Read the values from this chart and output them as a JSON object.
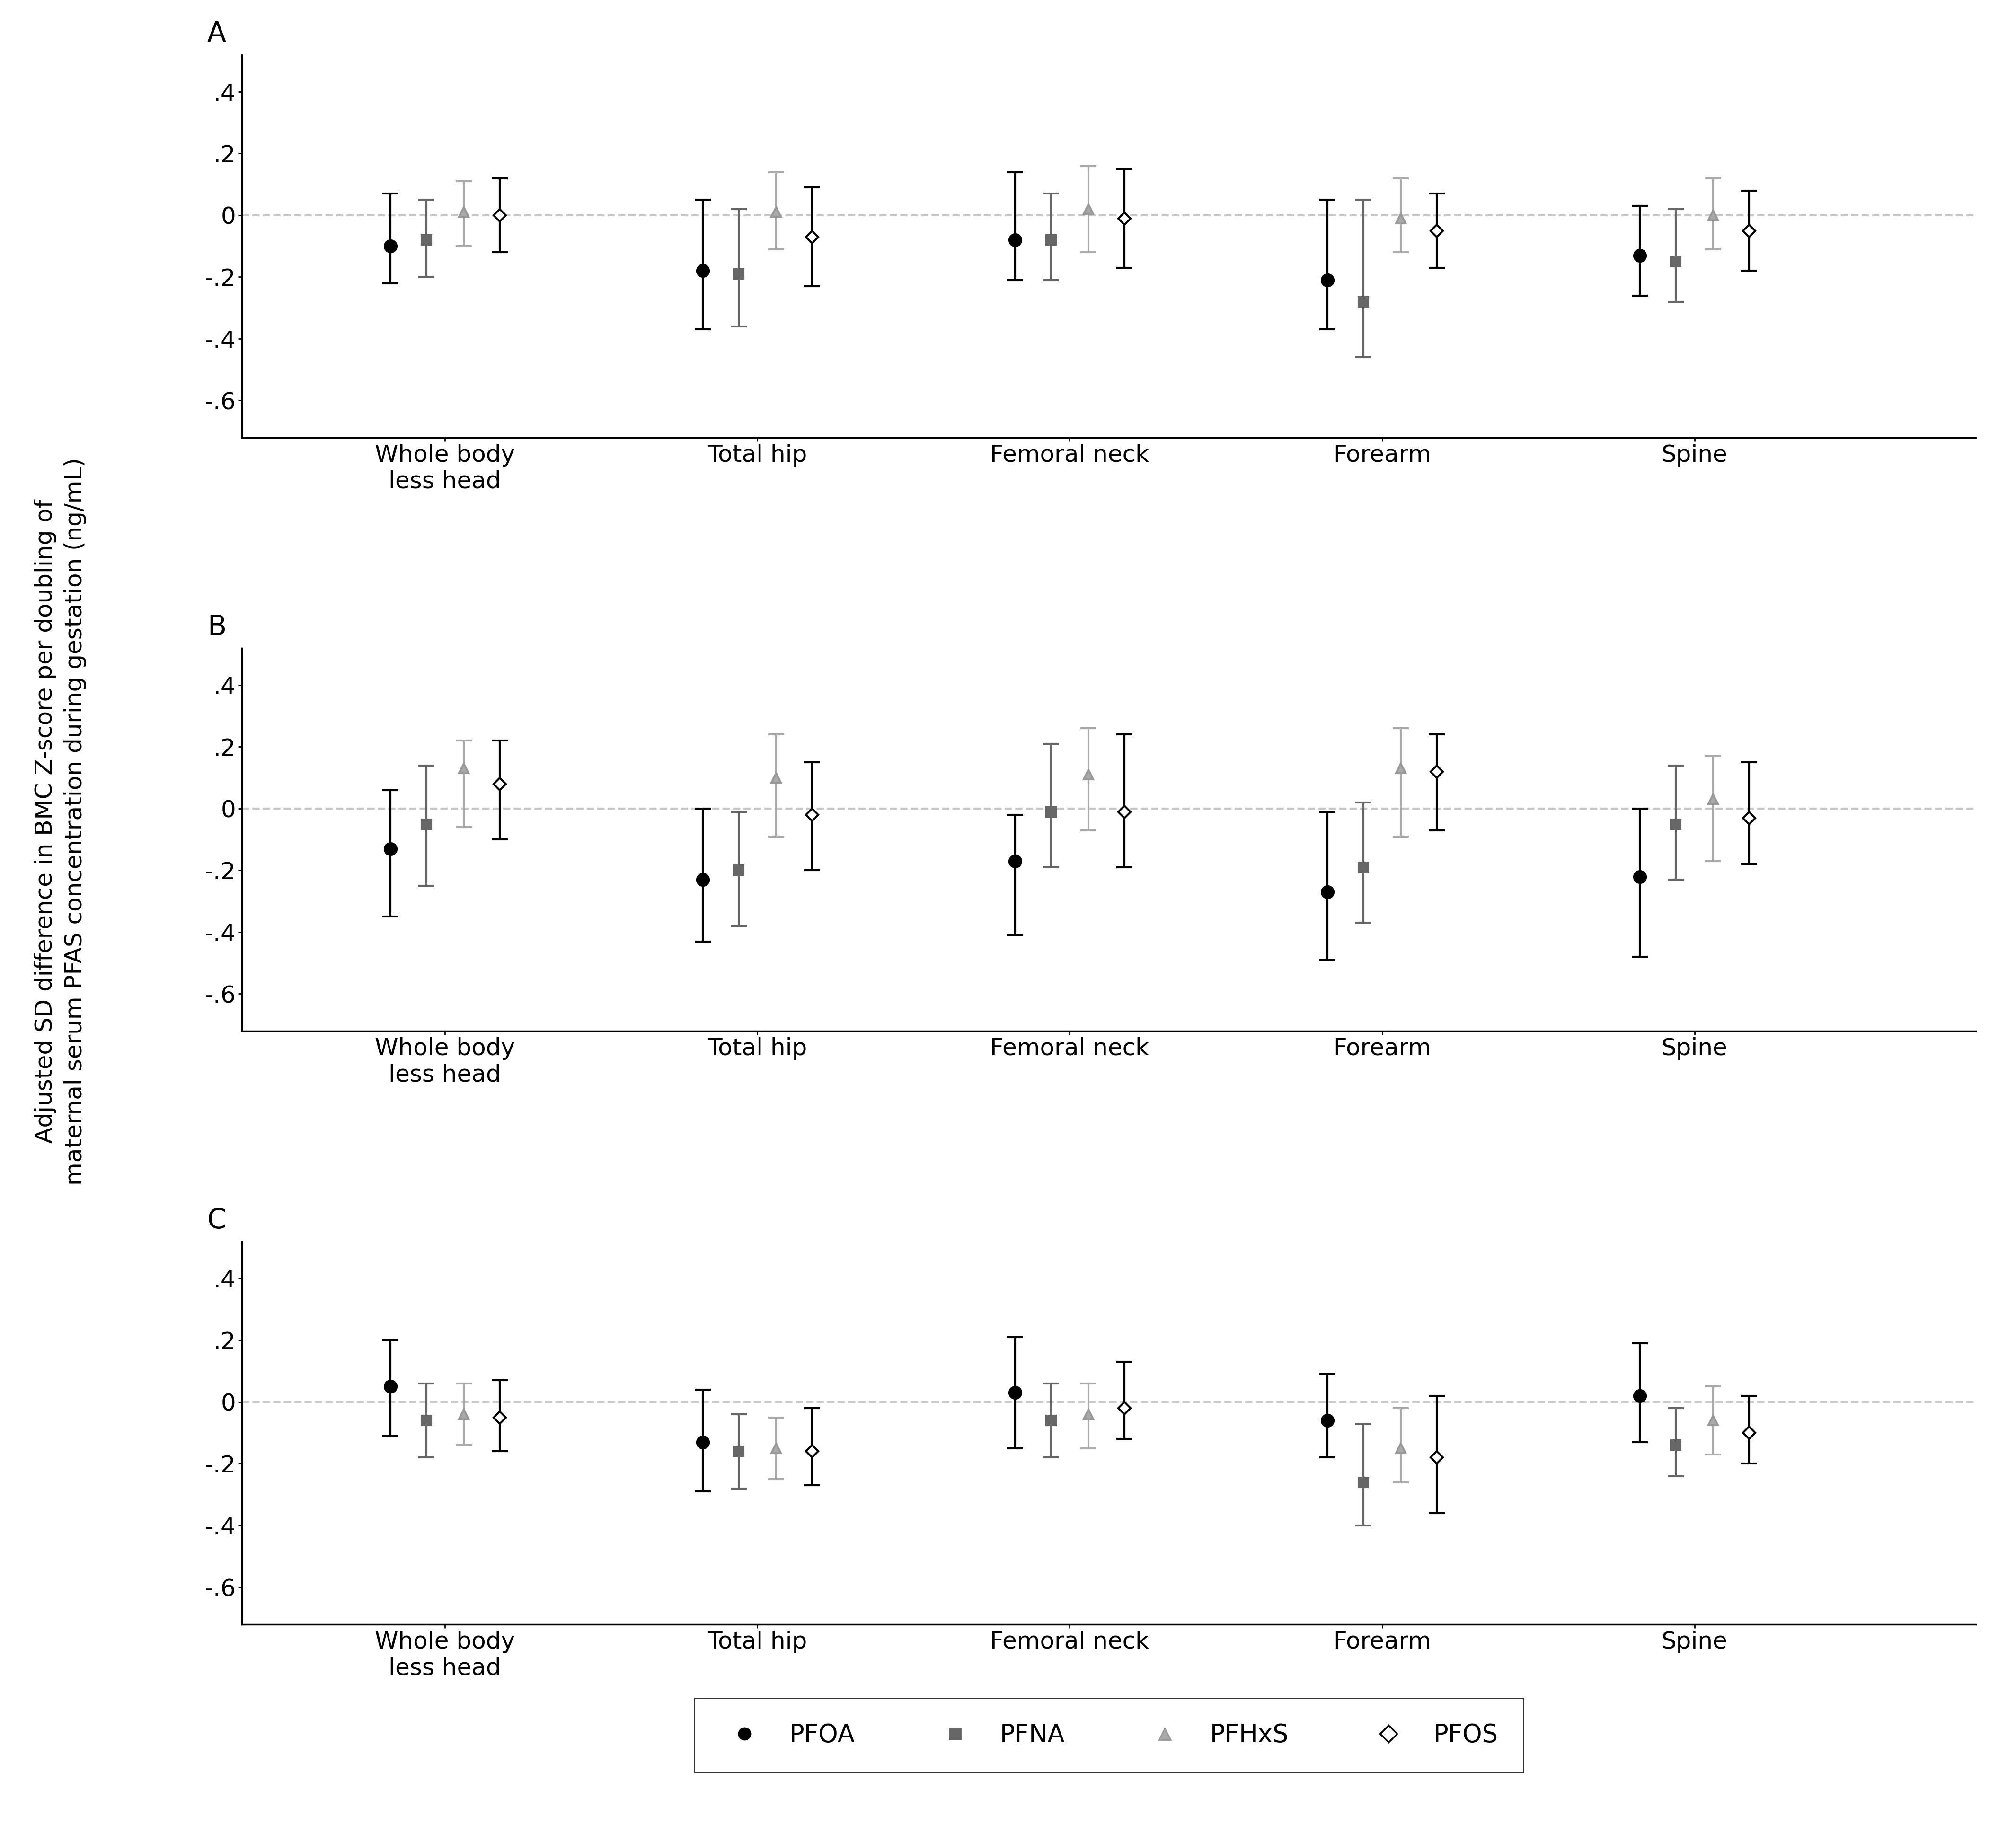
{
  "panels": [
    "A",
    "B",
    "C"
  ],
  "categories": [
    "Whole body\nless head",
    "Total hip",
    "Femoral neck",
    "Forearm",
    "Spine"
  ],
  "cat_positions": [
    1,
    3,
    5,
    7,
    9
  ],
  "offsets": [
    -0.35,
    -0.12,
    0.12,
    0.35
  ],
  "compounds": [
    "PFOA",
    "PFNA",
    "PFHxS",
    "PFOS"
  ],
  "colors": [
    "#000000",
    "#666666",
    "#aaaaaa",
    "#000000"
  ],
  "markers": [
    "o",
    "s",
    "^",
    "D"
  ],
  "marker_sizes": [
    18,
    15,
    15,
    13
  ],
  "marker_facecolors": [
    "#000000",
    "#666666",
    "#aaaaaa",
    "white"
  ],
  "marker_edgecolors": [
    "#000000",
    "#666666",
    "#999999",
    "#000000"
  ],
  "panel_A": {
    "PFOA": {
      "means": [
        -0.1,
        -0.18,
        -0.08,
        -0.21,
        -0.13
      ],
      "lo": [
        -0.22,
        -0.37,
        -0.21,
        -0.37,
        -0.26
      ],
      "hi": [
        0.07,
        0.05,
        0.14,
        0.05,
        0.03
      ]
    },
    "PFNA": {
      "means": [
        -0.08,
        -0.19,
        -0.08,
        -0.28,
        -0.15
      ],
      "lo": [
        -0.2,
        -0.36,
        -0.21,
        -0.46,
        -0.28
      ],
      "hi": [
        0.05,
        0.02,
        0.07,
        0.05,
        0.02
      ]
    },
    "PFHxS": {
      "means": [
        0.01,
        0.01,
        0.02,
        -0.01,
        0.0
      ],
      "lo": [
        -0.1,
        -0.11,
        -0.12,
        -0.12,
        -0.11
      ],
      "hi": [
        0.11,
        0.14,
        0.16,
        0.12,
        0.12
      ]
    },
    "PFOS": {
      "means": [
        0.0,
        -0.07,
        -0.01,
        -0.05,
        -0.05
      ],
      "lo": [
        -0.12,
        -0.23,
        -0.17,
        -0.17,
        -0.18
      ],
      "hi": [
        0.12,
        0.09,
        0.15,
        0.07,
        0.08
      ]
    }
  },
  "panel_B": {
    "PFOA": {
      "means": [
        -0.13,
        -0.23,
        -0.17,
        -0.27,
        -0.22
      ],
      "lo": [
        -0.35,
        -0.43,
        -0.41,
        -0.49,
        -0.48
      ],
      "hi": [
        0.06,
        0.0,
        -0.02,
        -0.01,
        0.0
      ]
    },
    "PFNA": {
      "means": [
        -0.05,
        -0.2,
        -0.01,
        -0.19,
        -0.05
      ],
      "lo": [
        -0.25,
        -0.38,
        -0.19,
        -0.37,
        -0.23
      ],
      "hi": [
        0.14,
        -0.01,
        0.21,
        0.02,
        0.14
      ]
    },
    "PFHxS": {
      "means": [
        0.13,
        0.1,
        0.11,
        0.13,
        0.03
      ],
      "lo": [
        -0.06,
        -0.09,
        -0.07,
        -0.09,
        -0.17
      ],
      "hi": [
        0.22,
        0.24,
        0.26,
        0.26,
        0.17
      ]
    },
    "PFOS": {
      "means": [
        0.08,
        -0.02,
        -0.01,
        0.12,
        -0.03
      ],
      "lo": [
        -0.1,
        -0.2,
        -0.19,
        -0.07,
        -0.18
      ],
      "hi": [
        0.22,
        0.15,
        0.24,
        0.24,
        0.15
      ]
    }
  },
  "panel_C": {
    "PFOA": {
      "means": [
        0.05,
        -0.13,
        0.03,
        -0.06,
        0.02
      ],
      "lo": [
        -0.11,
        -0.29,
        -0.15,
        -0.18,
        -0.13
      ],
      "hi": [
        0.2,
        0.04,
        0.21,
        0.09,
        0.19
      ]
    },
    "PFNA": {
      "means": [
        -0.06,
        -0.16,
        -0.06,
        -0.26,
        -0.14
      ],
      "lo": [
        -0.18,
        -0.28,
        -0.18,
        -0.4,
        -0.24
      ],
      "hi": [
        0.06,
        -0.04,
        0.06,
        -0.07,
        -0.02
      ]
    },
    "PFHxS": {
      "means": [
        -0.04,
        -0.15,
        -0.04,
        -0.15,
        -0.06
      ],
      "lo": [
        -0.14,
        -0.25,
        -0.15,
        -0.26,
        -0.17
      ],
      "hi": [
        0.06,
        -0.05,
        0.06,
        -0.02,
        0.05
      ]
    },
    "PFOS": {
      "means": [
        -0.05,
        -0.16,
        -0.02,
        -0.18,
        -0.1
      ],
      "lo": [
        -0.16,
        -0.27,
        -0.12,
        -0.36,
        -0.2
      ],
      "hi": [
        0.07,
        -0.02,
        0.13,
        0.02,
        0.02
      ]
    }
  },
  "ylabel": "Adjusted SD difference in BMC Z-score per doubling of\nmaternal serum PFAS concentration during gestation (ng/mL)",
  "ylim": [
    -0.72,
    0.52
  ],
  "yticks": [
    -0.6,
    -0.4,
    -0.2,
    0.0,
    0.2,
    0.4
  ],
  "yticklabels": [
    "-.6",
    "-.4",
    "-.2",
    "0",
    ".2",
    ".4"
  ],
  "background_color": "#ffffff",
  "legend_labels": [
    "PFOA",
    "PFNA",
    "PFHxS",
    "PFOS"
  ],
  "title_fontsize": 38,
  "tick_fontsize": 36,
  "ylabel_fontsize": 36,
  "legend_fontsize": 38,
  "panel_label_fontsize": 42,
  "elinewidth": 3.0,
  "capsize": 12,
  "capthick": 3.0,
  "marker_edgewidth": 3.0
}
